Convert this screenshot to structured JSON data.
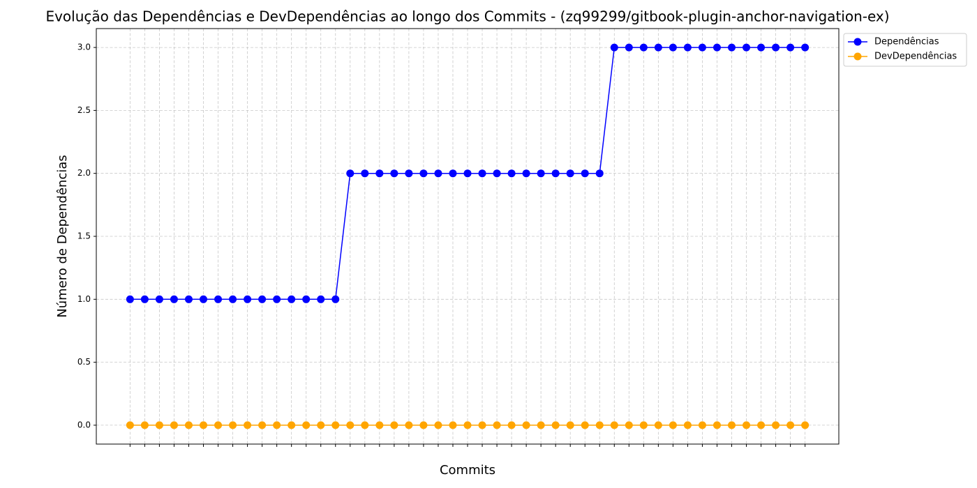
{
  "chart_data": {
    "type": "line",
    "title": "Evolução das Dependências e DevDependências ao longo dos Commits - (zq99299/gitbook-plugin-anchor-navigation-ex)",
    "xlabel": "Commits",
    "ylabel": "Número de Dependências",
    "categories": [
      null,
      null,
      null,
      null,
      null,
      null,
      null,
      null,
      null,
      null,
      null,
      null,
      null,
      null,
      null,
      null,
      null,
      null,
      null,
      null,
      null,
      null,
      null,
      null,
      null,
      null,
      null,
      null,
      null,
      null,
      null,
      null,
      null,
      null,
      null,
      null,
      null,
      null,
      null,
      null,
      null,
      null,
      null,
      null,
      null,
      null,
      null
    ],
    "series": [
      {
        "name": "Dependências",
        "color": "#0000ff",
        "values": [
          1,
          1,
          1,
          1,
          1,
          1,
          1,
          1,
          1,
          1,
          1,
          1,
          1,
          1,
          1,
          2,
          2,
          2,
          2,
          2,
          2,
          2,
          2,
          2,
          2,
          2,
          2,
          2,
          2,
          2,
          2,
          2,
          2,
          3,
          3,
          3,
          3,
          3,
          3,
          3,
          3,
          3,
          3,
          3,
          3,
          3,
          3
        ]
      },
      {
        "name": "DevDependências",
        "color": "#ffa500",
        "values": [
          0,
          0,
          0,
          0,
          0,
          0,
          0,
          0,
          0,
          0,
          0,
          0,
          0,
          0,
          0,
          0,
          0,
          0,
          0,
          0,
          0,
          0,
          0,
          0,
          0,
          0,
          0,
          0,
          0,
          0,
          0,
          0,
          0,
          0,
          0,
          0,
          0,
          0,
          0,
          0,
          0,
          0,
          0,
          0,
          0,
          0,
          0
        ]
      }
    ],
    "ylim": [
      -0.15,
      3.15
    ],
    "yticks": [
      {
        "value": 0,
        "label": "0.0"
      },
      {
        "value": 0.5,
        "label": "0.5"
      },
      {
        "value": 1,
        "label": "1.0"
      },
      {
        "value": 1.5,
        "label": "1.5"
      },
      {
        "value": 2,
        "label": "2.0"
      },
      {
        "value": 2.5,
        "label": "2.5"
      },
      {
        "value": 3,
        "label": "3.0"
      }
    ],
    "grid": true,
    "legend": "outside upper right",
    "marker": "o"
  }
}
